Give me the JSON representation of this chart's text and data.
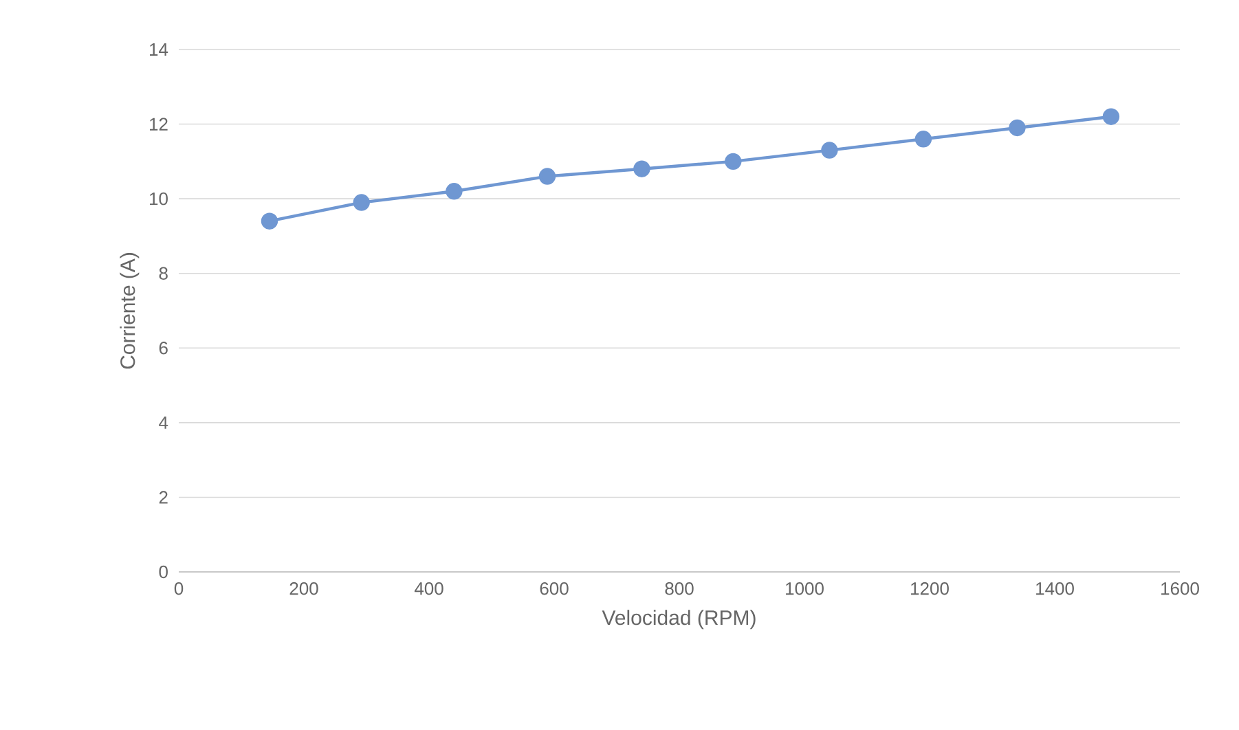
{
  "chart_data": {
    "type": "line",
    "xlabel": "Velocidad (RPM)",
    "ylabel": "Corriente (A)",
    "x": [
      145,
      292,
      440,
      589,
      740,
      886,
      1040,
      1190,
      1340,
      1490
    ],
    "series": [
      {
        "color": "#6f97d2",
        "values": [
          9.4,
          9.9,
          10.2,
          10.6,
          10.8,
          11.0,
          11.3,
          11.6,
          11.9,
          12.2
        ]
      }
    ],
    "xlim": [
      0,
      1600
    ],
    "xticks": [
      0,
      200,
      400,
      600,
      800,
      1000,
      1200,
      1400,
      1600
    ],
    "ylim": [
      0,
      14
    ],
    "yticks": [
      0,
      2,
      4,
      6,
      8,
      10,
      12,
      14
    ],
    "grid": "y",
    "marker": "circle",
    "line_style": "solid"
  }
}
